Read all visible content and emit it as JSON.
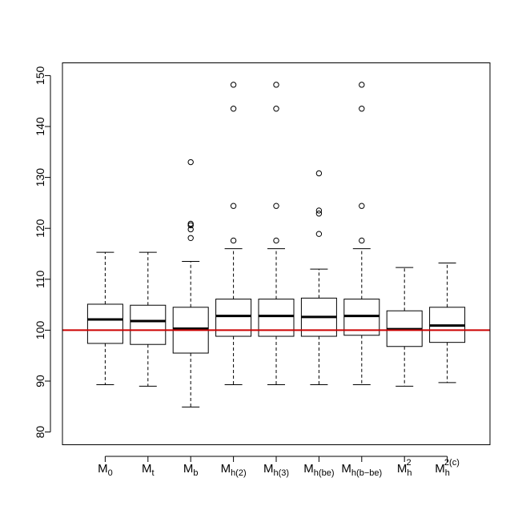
{
  "chart_data": {
    "type": "box",
    "title": "",
    "xlabel": "",
    "ylabel": "",
    "ylim": [
      77.5,
      152.5
    ],
    "yticks": [
      80,
      90,
      100,
      110,
      120,
      130,
      140,
      150
    ],
    "grid": false,
    "reference_line": {
      "y": 100,
      "color": "#cc0000"
    },
    "categories": [
      {
        "base": "M",
        "sub": "0",
        "sup": ""
      },
      {
        "base": "M",
        "sub": "t",
        "sup": ""
      },
      {
        "base": "M",
        "sub": "b",
        "sup": ""
      },
      {
        "base": "M",
        "sub": "h(2)",
        "sup": ""
      },
      {
        "base": "M",
        "sub": "h(3)",
        "sup": ""
      },
      {
        "base": "M",
        "sub": "h(be)",
        "sup": ""
      },
      {
        "base": "M",
        "sub": "h(b−be)",
        "sup": ""
      },
      {
        "base": "M",
        "sub": "h",
        "sup": "2"
      },
      {
        "base": "M",
        "sub": "h",
        "sup": "2(c)"
      }
    ],
    "boxes": [
      {
        "whisker_low": 89.3,
        "q1": 97.4,
        "median": 102.1,
        "q3": 105.1,
        "whisker_high": 115.3,
        "outliers": []
      },
      {
        "whisker_low": 89.0,
        "q1": 97.2,
        "median": 101.8,
        "q3": 104.9,
        "whisker_high": 115.3,
        "outliers": []
      },
      {
        "whisker_low": 84.9,
        "q1": 95.5,
        "median": 100.3,
        "q3": 104.5,
        "whisker_high": 113.5,
        "outliers": [
          118.1,
          119.8,
          120.6,
          120.9,
          133.0
        ]
      },
      {
        "whisker_low": 89.3,
        "q1": 98.8,
        "median": 102.8,
        "q3": 106.1,
        "whisker_high": 116.0,
        "outliers": [
          117.6,
          124.4,
          143.5,
          148.2
        ]
      },
      {
        "whisker_low": 89.3,
        "q1": 98.8,
        "median": 102.8,
        "q3": 106.1,
        "whisker_high": 116.0,
        "outliers": [
          117.6,
          124.4,
          143.5,
          148.2
        ]
      },
      {
        "whisker_low": 89.3,
        "q1": 98.8,
        "median": 102.6,
        "q3": 106.3,
        "whisker_high": 112.0,
        "outliers": [
          118.9,
          122.9,
          123.5,
          130.8
        ]
      },
      {
        "whisker_low": 89.3,
        "q1": 99.0,
        "median": 102.8,
        "q3": 106.1,
        "whisker_high": 116.0,
        "outliers": [
          117.6,
          124.4,
          143.5,
          148.2
        ]
      },
      {
        "whisker_low": 89.0,
        "q1": 96.8,
        "median": 100.2,
        "q3": 103.8,
        "whisker_high": 112.3,
        "outliers": []
      },
      {
        "whisker_low": 89.7,
        "q1": 97.6,
        "median": 100.9,
        "q3": 104.5,
        "whisker_high": 113.2,
        "outliers": []
      }
    ]
  }
}
